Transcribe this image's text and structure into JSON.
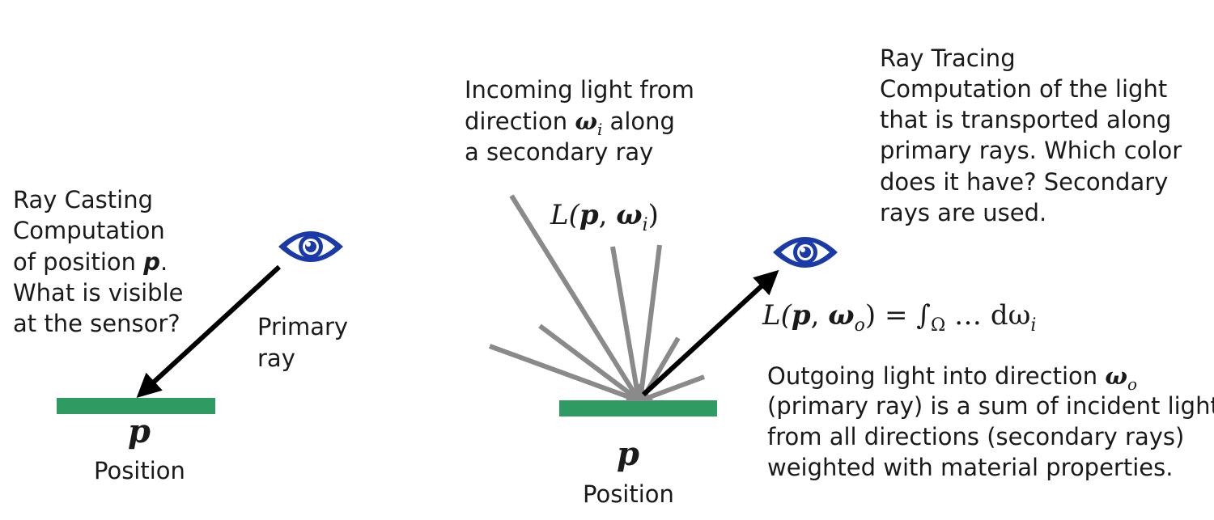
{
  "left": {
    "title": "Ray Casting",
    "desc_line1": "Computation",
    "desc_line2_pre": "of position ",
    "desc_line2_sym": "p",
    "desc_line2_post": ".",
    "desc_line3": "What is visible",
    "desc_line4": "at the sensor?",
    "ray_label_line1": "Primary",
    "ray_label_line2": "ray",
    "point_symbol": "p",
    "position_label": "Position"
  },
  "middle": {
    "incoming_line1": "Incoming light from",
    "incoming_line2_pre": "direction ",
    "incoming_line2_sym": "ω",
    "incoming_line2_sub": "i",
    "incoming_line2_post": " along",
    "incoming_line3": "a secondary ray",
    "radiance_in_pre": "L(",
    "radiance_in_p": "p",
    "radiance_in_mid": ", ",
    "radiance_in_w": "ω",
    "radiance_in_sub": "i",
    "radiance_in_post": ")",
    "point_symbol": "p",
    "position_label": "Position"
  },
  "right": {
    "title": "Ray Tracing",
    "desc_line1": "Computation of the light",
    "desc_line2": "that is transported along",
    "desc_line3": "primary rays. Which color",
    "desc_line4": "does it have? Secondary",
    "desc_line5": "rays are used.",
    "equation_lhs_pre": "L(",
    "equation_lhs_p": "p",
    "equation_lhs_mid": ", ",
    "equation_lhs_w": "ω",
    "equation_lhs_sub": "o",
    "equation_lhs_post": ")",
    "equation_rhs": " = ∫",
    "equation_domain": "Ω",
    "equation_tail": " … dω",
    "equation_tail_sub": "i",
    "outgoing_line1_pre": "Outgoing light into direction ",
    "outgoing_line1_sym": "ω",
    "outgoing_line1_sub": "o",
    "outgoing_line2": "(primary ray) is a sum of incident light",
    "outgoing_line3": "from all directions (secondary rays)",
    "outgoing_line4": "weighted with material properties."
  },
  "colors": {
    "surface": "#2e9b62",
    "eye": "#1a3aa8",
    "secondary_ray": "#8a8a8a",
    "primary_ray": "#000000"
  },
  "icons": [
    "eye-icon",
    "eye-icon"
  ]
}
